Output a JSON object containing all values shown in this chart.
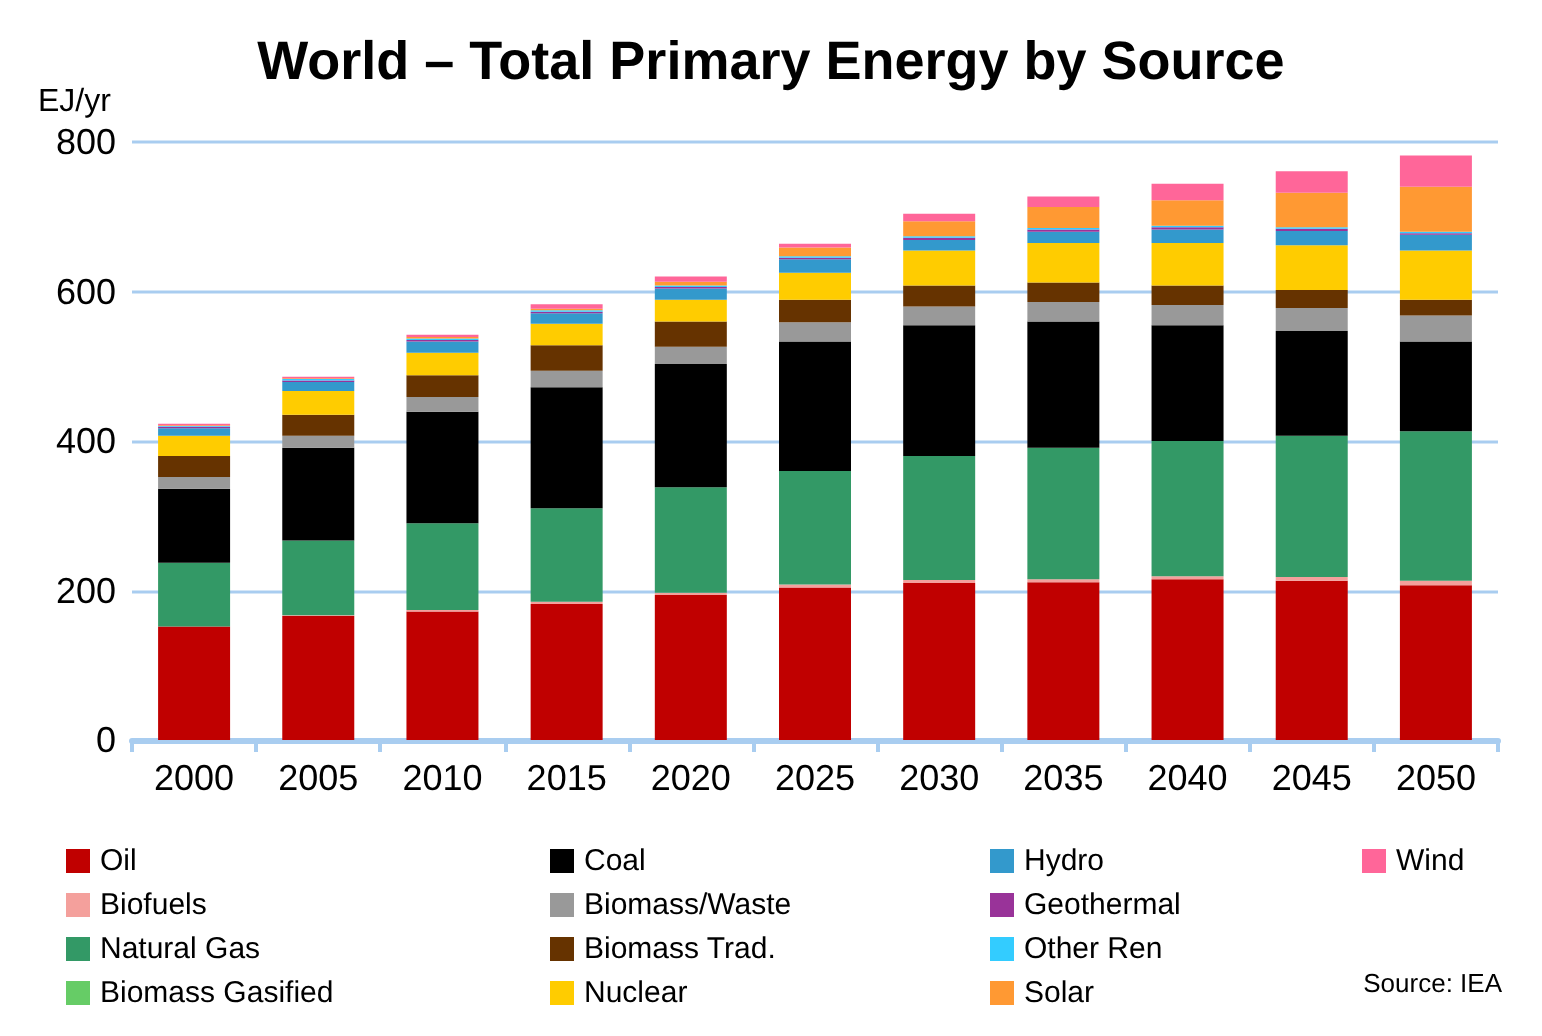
{
  "chart_data": {
    "type": "bar",
    "stacked": true,
    "title": "World – Total Primary Energy by Source",
    "ylabel": "EJ/yr",
    "categories": [
      "2000",
      "2005",
      "2010",
      "2015",
      "2020",
      "2025",
      "2030",
      "2035",
      "2040",
      "2045",
      "2050"
    ],
    "ylim": [
      0,
      800
    ],
    "yticks": [
      0,
      200,
      400,
      600,
      800
    ],
    "grid": "y",
    "legend": "bottom",
    "annotations": [
      "Source: IEA"
    ],
    "series": [
      {
        "name": "Oil",
        "color": "#c00000",
        "values": [
          152,
          166,
          172,
          182,
          194,
          204,
          210,
          211,
          215,
          213,
          207
        ]
      },
      {
        "name": "Biofuels",
        "color": "#f4a09c",
        "values": [
          null,
          1,
          2,
          3,
          3,
          4,
          4,
          4,
          4,
          5,
          6
        ]
      },
      {
        "name": "Natural Gas",
        "color": "#339966",
        "values": [
          85,
          100,
          116,
          125,
          141,
          152,
          166,
          176,
          181,
          189,
          200
        ]
      },
      {
        "name": "Biomass Gasified",
        "color": "#66cc66",
        "values": [
          0,
          0,
          0,
          0,
          0,
          0,
          0,
          0,
          0,
          0,
          0
        ]
      },
      {
        "name": "Coal",
        "color": "#000000",
        "values": [
          99,
          124,
          149,
          162,
          165,
          173,
          175,
          169,
          155,
          140,
          120
        ]
      },
      {
        "name": "Biomass/Waste",
        "color": "#999999",
        "values": [
          16,
          16,
          20,
          22,
          23,
          26,
          25,
          26,
          27,
          31,
          35
        ]
      },
      {
        "name": "Biomass Trad.",
        "color": "#663300",
        "values": [
          28,
          28,
          29,
          34,
          34,
          30,
          28,
          26,
          26,
          24,
          21
        ]
      },
      {
        "name": "Nuclear",
        "color": "#ffcc00",
        "values": [
          27,
          32,
          30,
          29,
          29,
          36,
          47,
          53,
          57,
          60,
          66
        ]
      },
      {
        "name": "Hydro",
        "color": "#3399cc",
        "values": [
          10,
          12,
          15,
          14,
          15,
          18,
          14,
          15,
          18,
          19,
          21
        ]
      },
      {
        "name": "Geothermal",
        "color": "#993399",
        "values": [
          2,
          2,
          2,
          2,
          2,
          2,
          3,
          3,
          3,
          3,
          2
        ]
      },
      {
        "name": "Other Ren",
        "color": "#33ccff",
        "values": [
          1,
          2,
          2,
          2,
          2,
          2,
          2,
          2,
          2,
          2,
          2
        ]
      },
      {
        "name": "Solar",
        "color": "#ff9933",
        "values": [
          1,
          1,
          2,
          2,
          5,
          12,
          20,
          28,
          34,
          46,
          60
        ]
      },
      {
        "name": "Wind",
        "color": "#ff6699",
        "values": [
          2,
          2,
          3,
          6,
          7,
          5,
          10,
          14,
          22,
          29,
          42
        ]
      }
    ]
  }
}
